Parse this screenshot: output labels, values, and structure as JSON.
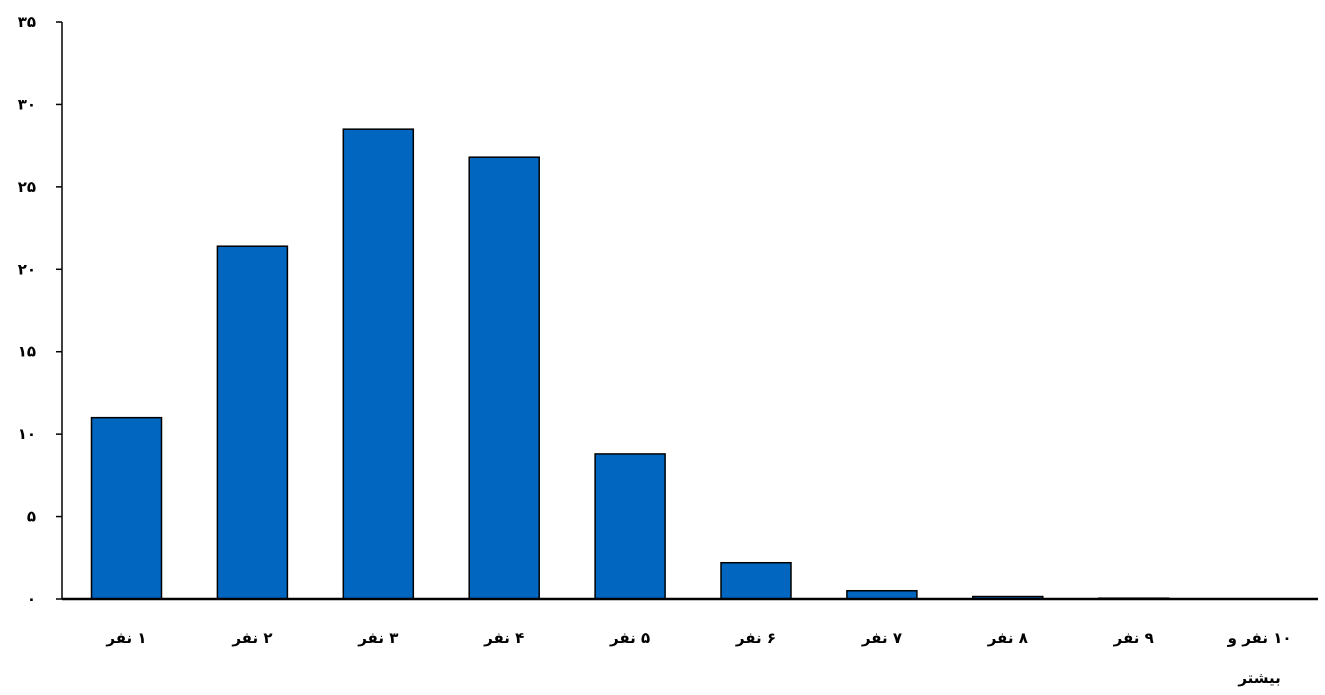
{
  "chart_data": {
    "type": "bar",
    "categories": [
      [
        "۱ نفر"
      ],
      [
        "۲ نفر"
      ],
      [
        "۳ نفر"
      ],
      [
        "۴ نفر"
      ],
      [
        "۵ نفر"
      ],
      [
        "۶ نفر"
      ],
      [
        "۷ نفر"
      ],
      [
        "۸ نفر"
      ],
      [
        "۹ نفر"
      ],
      [
        "۱۰ نفر و",
        "بیشتر"
      ]
    ],
    "values": [
      11.0,
      21.4,
      28.5,
      26.8,
      8.8,
      2.2,
      0.5,
      0.15,
      0.05,
      0.0
    ],
    "ylim": [
      0,
      35
    ],
    "yticks": [
      0,
      5,
      10,
      15,
      20,
      25,
      30,
      35
    ],
    "ytick_labels": [
      "۰",
      "۵",
      "۱۰",
      "۱۵",
      "۲۰",
      "۲۵",
      "۳۰",
      "۳۵"
    ],
    "bar_color": "#0066BF",
    "bar_edge_color": "#000000",
    "title": "",
    "xlabel": "",
    "ylabel": "",
    "grid": false,
    "legend": "none"
  }
}
